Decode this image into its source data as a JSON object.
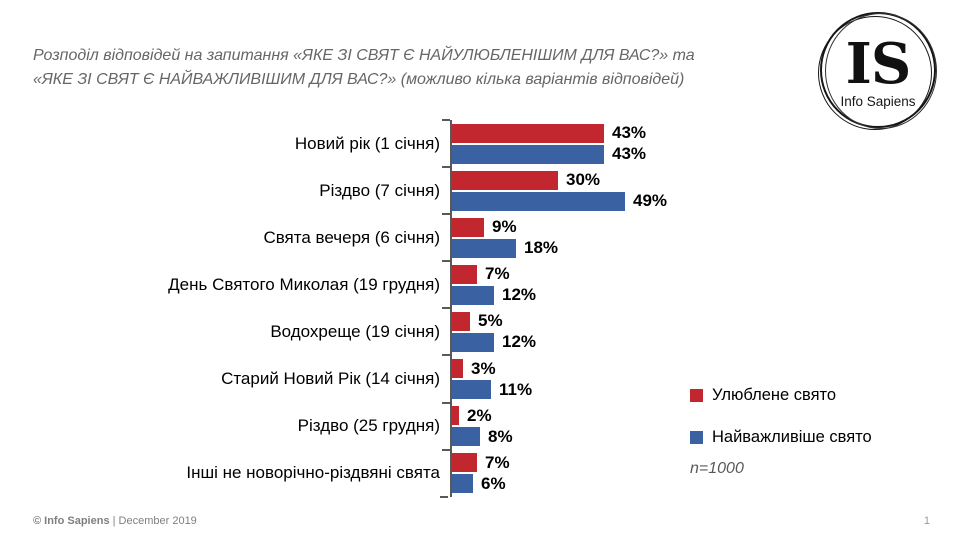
{
  "title": {
    "line1": "Розподіл відповідей на запитання «ЯКЕ ЗІ СВЯТ Є НАЙУЛЮБЛЕНІШИМ ДЛЯ ВАС?» та",
    "line2": "«ЯКЕ ЗІ СВЯТ Є НАЙВАЖЛИВІШИМ ДЛЯ ВАС?» (можливо кілька варіантів відповідей)"
  },
  "logo": {
    "monogram": "IS",
    "name": "Info Sapiens"
  },
  "chart_data": {
    "type": "bar",
    "orientation": "horizontal",
    "categories": [
      "Новий рік (1 січня)",
      "Різдво (7 січня)",
      "Свята вечеря (6 січня)",
      "День Святого Миколая (19 грудня)",
      "Водохреще (19 січня)",
      "Старий Новий Рік (14 січня)",
      "Різдво (25 грудня)",
      "Інші не новорічно-різдвяні свята"
    ],
    "series": [
      {
        "name": "Улюблене свято",
        "color": "#c2262e",
        "values": [
          43,
          30,
          9,
          7,
          5,
          3,
          2,
          7
        ]
      },
      {
        "name": "Найважливіше свято",
        "color": "#3a62a3",
        "values": [
          43,
          49,
          18,
          12,
          12,
          11,
          8,
          6
        ]
      }
    ],
    "value_suffix": "%",
    "xlim": [
      0,
      70
    ],
    "grid": false,
    "legend_position": "right",
    "sample_size_note": "n=1000"
  },
  "footer": {
    "copyright": "© Info Sapiens",
    "date": " | December 2019",
    "page_number": "1"
  }
}
